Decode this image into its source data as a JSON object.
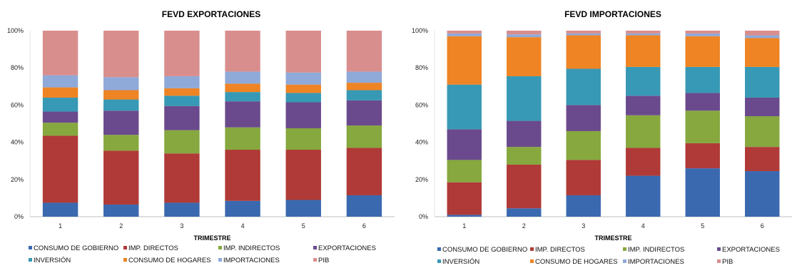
{
  "colors": {
    "CONSUMO DE GOBIERNO": "#3a69b0",
    "IMP. DIRECTOS": "#b03a37",
    "IMP. INDIRECTOS": "#86a83e",
    "EXPORTACIONES": "#6a4a8c",
    "INVERSIÓN": "#3799b5",
    "CONSUMO DE HOGARES": "#ee8424",
    "IMPORTACIONES": "#8fa9d8",
    "PIB": "#d98e8e"
  },
  "chart_data": [
    {
      "type": "bar",
      "stacked": true,
      "percent": true,
      "title": "FEVD EXPORTACIONES",
      "xlabel": "TRIMESTRE",
      "ylabel": "",
      "ylim": [
        0,
        100
      ],
      "yticks": [
        "0%",
        "20%",
        "40%",
        "60%",
        "80%",
        "100%"
      ],
      "categories": [
        "1",
        "2",
        "3",
        "4",
        "5",
        "6"
      ],
      "legend_position": "bottom",
      "series": [
        {
          "name": "CONSUMO DE GOBIERNO",
          "values": [
            7.5,
            6.5,
            7.5,
            8.5,
            9,
            11.5
          ]
        },
        {
          "name": "IMP. DIRECTOS",
          "values": [
            36,
            29,
            26.5,
            27.5,
            27,
            25.5
          ]
        },
        {
          "name": "IMP. INDIRECTOS",
          "values": [
            7,
            8.5,
            12.5,
            12,
            11.5,
            12
          ]
        },
        {
          "name": "EXPORTACIONES",
          "values": [
            6,
            13,
            13,
            14,
            14,
            13.5
          ]
        },
        {
          "name": "INVERSIÓN",
          "values": [
            7.5,
            6,
            5.5,
            5,
            5,
            5.5
          ]
        },
        {
          "name": "CONSUMO DE HOGARES",
          "values": [
            5.5,
            5,
            4,
            4.5,
            4.5,
            4
          ]
        },
        {
          "name": "IMPORTACIONES",
          "values": [
            6.5,
            7,
            6.5,
            6.5,
            6.5,
            6
          ]
        },
        {
          "name": "PIB",
          "values": [
            24,
            25,
            24.5,
            22,
            22.5,
            22
          ]
        }
      ]
    },
    {
      "type": "bar",
      "stacked": true,
      "percent": true,
      "title": "FEVD IMPORTACIONES",
      "xlabel": "TRIMESTRE",
      "ylabel": "",
      "ylim": [
        0,
        100
      ],
      "yticks": [
        "0%",
        "20%",
        "40%",
        "60%",
        "80%",
        "100%"
      ],
      "categories": [
        "1",
        "2",
        "3",
        "4",
        "5",
        "6"
      ],
      "legend_position": "bottom",
      "series": [
        {
          "name": "CONSUMO DE GOBIERNO",
          "values": [
            1,
            4.5,
            11.5,
            22,
            26,
            24.5
          ]
        },
        {
          "name": "IMP. DIRECTOS",
          "values": [
            17.5,
            23.5,
            19,
            15,
            13.5,
            13
          ]
        },
        {
          "name": "IMP. INDIRECTOS",
          "values": [
            12,
            9.5,
            15.5,
            17.5,
            17.5,
            16.5
          ]
        },
        {
          "name": "EXPORTACIONES",
          "values": [
            16.5,
            14,
            14,
            10.5,
            9.5,
            10
          ]
        },
        {
          "name": "INVERSIÓN",
          "values": [
            24,
            24,
            19.5,
            15.5,
            14,
            16.5
          ]
        },
        {
          "name": "CONSUMO DE HOGARES",
          "values": [
            26,
            21,
            18,
            17,
            16.5,
            15.5
          ]
        },
        {
          "name": "IMPORTACIONES",
          "values": [
            1.5,
            1.5,
            1,
            1,
            1.5,
            1.5
          ]
        },
        {
          "name": "PIB",
          "values": [
            1.5,
            2,
            1.5,
            1.5,
            1.5,
            2.5
          ]
        }
      ]
    }
  ]
}
